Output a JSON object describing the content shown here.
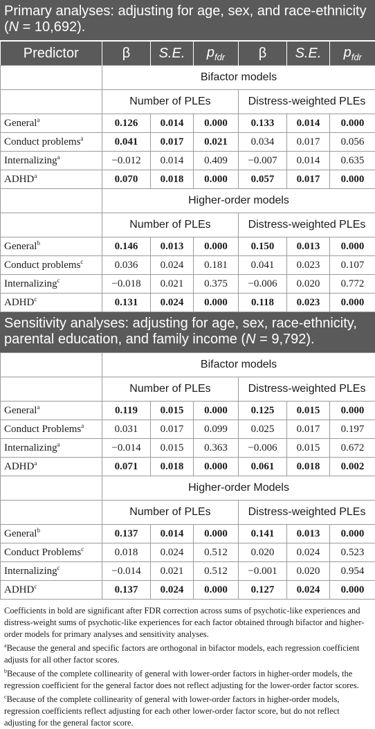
{
  "primary": {
    "title_a": "Primary analyses: adjusting for age, sex, and race-ethnicity (",
    "title_n": "N",
    "title_b": " = 10,692)."
  },
  "columns": {
    "predictor": "Predictor",
    "beta": "β",
    "se": "S.E.",
    "p": "p",
    "p_sub": "fdr"
  },
  "subheads": {
    "bifactor": "Bifactor models",
    "higher_order": "Higher-order models",
    "higher_order_sens": "Higher-order Models",
    "number": "Number of PLEs",
    "distress": "Distress-weighted PLEs"
  },
  "primary_bifactor": [
    {
      "label": "General",
      "sup": "a",
      "v": [
        "0.126",
        "0.014",
        "0.000",
        "0.133",
        "0.014",
        "0.000"
      ],
      "bold": [
        true,
        true,
        true,
        true,
        true,
        true
      ]
    },
    {
      "label": "Conduct problems",
      "sup": "a",
      "v": [
        "0.041",
        "0.017",
        "0.021",
        "0.034",
        "0.017",
        "0.056"
      ],
      "bold": [
        true,
        true,
        true,
        false,
        false,
        false
      ]
    },
    {
      "label": "Internalizing",
      "sup": "a",
      "v": [
        "−0.012",
        "0.014",
        "0.409",
        "−0.007",
        "0.014",
        "0.635"
      ],
      "bold": [
        false,
        false,
        false,
        false,
        false,
        false
      ]
    },
    {
      "label": "ADHD",
      "sup": "a",
      "v": [
        "0.070",
        "0.018",
        "0.000",
        "0.057",
        "0.017",
        "0.000"
      ],
      "bold": [
        true,
        true,
        true,
        true,
        true,
        true
      ]
    }
  ],
  "primary_higher": [
    {
      "label": "General",
      "sup": "b",
      "v": [
        "0.146",
        "0.013",
        "0.000",
        "0.150",
        "0.013",
        "0.000"
      ],
      "bold": [
        true,
        true,
        true,
        true,
        true,
        true
      ]
    },
    {
      "label": "Conduct problems",
      "sup": "c",
      "v": [
        "0.036",
        "0.024",
        "0.181",
        "0.041",
        "0.023",
        "0.107"
      ],
      "bold": [
        false,
        false,
        false,
        false,
        false,
        false
      ]
    },
    {
      "label": "Internalizing",
      "sup": "c",
      "v": [
        "−0.018",
        "0.021",
        "0.375",
        "−0.006",
        "0.020",
        "0.772"
      ],
      "bold": [
        false,
        false,
        false,
        false,
        false,
        false
      ]
    },
    {
      "label": "ADHD",
      "sup": "c",
      "v": [
        "0.131",
        "0.024",
        "0.000",
        "0.118",
        "0.023",
        "0.000"
      ],
      "bold": [
        true,
        true,
        true,
        true,
        true,
        true
      ]
    }
  ],
  "sensitivity": {
    "title_a": "Sensitivity analyses: adjusting for age, sex, race-ethnicity, parental education, and family income (",
    "title_n": "N",
    "title_b": " = 9,792)."
  },
  "sens_bifactor": [
    {
      "label": "General",
      "sup": "a",
      "v": [
        "0.119",
        "0.015",
        "0.000",
        "0.125",
        "0.015",
        "0.000"
      ],
      "bold": [
        true,
        true,
        true,
        true,
        true,
        true
      ]
    },
    {
      "label": "Conduct Problems",
      "sup": "a",
      "v": [
        "0.031",
        "0.017",
        "0.099",
        "0.025",
        "0.017",
        "0.197"
      ],
      "bold": [
        false,
        false,
        false,
        false,
        false,
        false
      ]
    },
    {
      "label": "Internalizing",
      "sup": "a",
      "v": [
        "−0.014",
        "0.015",
        "0.363",
        "−0.006",
        "0.015",
        "0.672"
      ],
      "bold": [
        false,
        false,
        false,
        false,
        false,
        false
      ]
    },
    {
      "label": "ADHD",
      "sup": "a",
      "v": [
        "0.071",
        "0.018",
        "0.000",
        "0.061",
        "0.018",
        "0.002"
      ],
      "bold": [
        true,
        true,
        true,
        true,
        true,
        true
      ]
    }
  ],
  "sens_higher": [
    {
      "label": "General",
      "sup": "b",
      "v": [
        "0.137",
        "0.014",
        "0.000",
        "0.141",
        "0.013",
        "0.000"
      ],
      "bold": [
        true,
        true,
        true,
        true,
        true,
        true
      ]
    },
    {
      "label": "Conduct Problems",
      "sup": "c",
      "v": [
        "0.018",
        "0.024",
        "0.512",
        "0.020",
        "0.024",
        "0.523"
      ],
      "bold": [
        false,
        false,
        false,
        false,
        false,
        false
      ]
    },
    {
      "label": "Internalizing",
      "sup": "c",
      "v": [
        "−0.014",
        "0.021",
        "0.512",
        "−0.001",
        "0.020",
        "0.954"
      ],
      "bold": [
        false,
        false,
        false,
        false,
        false,
        false
      ]
    },
    {
      "label": "ADHD",
      "sup": "c",
      "v": [
        "0.137",
        "0.024",
        "0.000",
        "0.127",
        "0.024",
        "0.000"
      ],
      "bold": [
        true,
        true,
        true,
        true,
        true,
        true
      ]
    }
  ],
  "notes": {
    "main": "Coefficients in bold are significant after FDR correction across sums of psychotic-like experiences and distress-weight sums of psychotic-like experiences for each factor obtained through bifactor and higher-order models for primary analyses and sensitivity analyses.",
    "a": "Because the general and specific factors are orthogonal in bifactor models, each regression coefficient adjusts for all other factor scores.",
    "b": "Because of the complete collinearity of general with lower-order factors in higher-order models, the regression coefficient for the general factor does not reflect adjusting for the lower-order factor scores.",
    "c": "Because of the complete collinearity of general with lower-order factors in higher-order models, regression coefficients reflect adjusting for each other lower-order factor score, but do not reflect adjusting for the general factor score.",
    "sup_a": "a",
    "sup_b": "b",
    "sup_c": "c"
  }
}
